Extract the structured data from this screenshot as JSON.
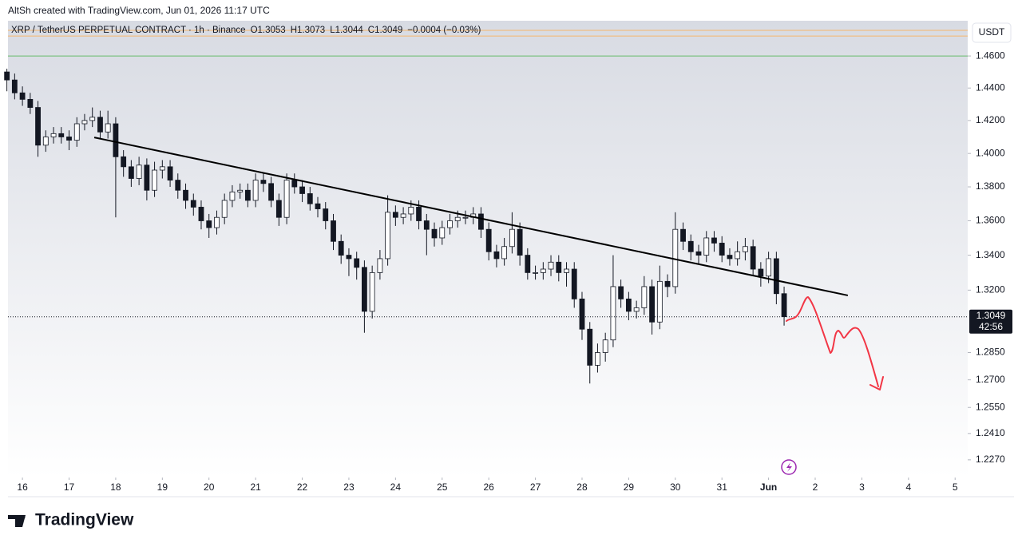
{
  "header": "AltSh created with TradingView.com, Jun 01, 2026 11:17 UTC",
  "brand": "TradingView",
  "chart_data": {
    "type": "candlestick",
    "title": "XRP / TetherUS PERPETUAL CONTRACT · 1h · Binance",
    "ohlc_labels": [
      "O1.3053",
      "H1.3073",
      "L1.3044",
      "C1.3049",
      "−0.0004 (−0.03%)"
    ],
    "currency": "USDT",
    "countdown": "42:56",
    "last_price": {
      "value": 1.3049,
      "label": "1.3049"
    },
    "up_color": "#ffffff",
    "down_color": "#131722",
    "x": [
      15.667,
      15.833,
      16,
      16.167,
      16.333,
      16.5,
      16.667,
      16.833,
      17,
      17.167,
      17.333,
      17.5,
      17.667,
      17.833,
      18,
      18.167,
      18.333,
      18.5,
      18.667,
      18.833,
      19,
      19.167,
      19.333,
      19.5,
      19.667,
      19.833,
      20,
      20.167,
      20.333,
      20.5,
      20.667,
      20.833,
      21,
      21.167,
      21.333,
      21.5,
      21.667,
      21.833,
      22,
      22.167,
      22.333,
      22.5,
      22.667,
      22.833,
      23,
      23.167,
      23.333,
      23.5,
      23.667,
      23.833,
      24,
      24.167,
      24.333,
      24.5,
      24.667,
      24.833,
      25,
      25.167,
      25.333,
      25.5,
      25.667,
      25.833,
      26,
      26.167,
      26.333,
      26.5,
      26.667,
      26.833,
      27,
      27.167,
      27.333,
      27.5,
      27.667,
      27.833,
      28,
      28.167,
      28.333,
      28.5,
      28.667,
      28.833,
      29,
      29.167,
      29.333,
      29.5,
      29.667,
      29.833,
      30,
      30.167,
      30.333,
      30.5,
      30.667,
      30.833,
      31,
      31.167,
      31.333,
      31.5,
      31.667,
      31.833,
      32,
      32.167,
      32.333
    ],
    "open": [
      1.45,
      1.445,
      1.437,
      1.433,
      1.428,
      1.405,
      1.41,
      1.412,
      1.41,
      1.408,
      1.418,
      1.42,
      1.422,
      1.413,
      1.418,
      1.398,
      1.392,
      1.385,
      1.393,
      1.378,
      1.39,
      1.392,
      1.384,
      1.378,
      1.372,
      1.368,
      1.36,
      1.356,
      1.362,
      1.372,
      1.377,
      1.378,
      1.372,
      1.384,
      1.382,
      1.372,
      1.362,
      1.384,
      1.38,
      1.376,
      1.37,
      1.367,
      1.36,
      1.348,
      1.34,
      1.338,
      1.333,
      1.308,
      1.33,
      1.338,
      1.365,
      1.362,
      1.364,
      1.368,
      1.36,
      1.355,
      1.35,
      1.356,
      1.36,
      1.362,
      1.362,
      1.364,
      1.355,
      1.342,
      1.338,
      1.345,
      1.355,
      1.34,
      1.33,
      1.33,
      1.332,
      1.336,
      1.33,
      1.332,
      1.315,
      1.298,
      1.278,
      1.285,
      1.292,
      1.322,
      1.315,
      1.308,
      1.31,
      1.322,
      1.302,
      1.325,
      1.322,
      1.355,
      1.348,
      1.342,
      1.34,
      1.35,
      1.347,
      1.34,
      1.338,
      1.342,
      1.345,
      1.332,
      1.328,
      1.338,
      1.318
    ],
    "high": [
      1.452,
      1.449,
      1.441,
      1.437,
      1.432,
      1.414,
      1.416,
      1.416,
      1.414,
      1.422,
      1.424,
      1.428,
      1.426,
      1.426,
      1.422,
      1.402,
      1.396,
      1.398,
      1.397,
      1.395,
      1.396,
      1.396,
      1.388,
      1.382,
      1.376,
      1.372,
      1.364,
      1.366,
      1.376,
      1.381,
      1.382,
      1.382,
      1.388,
      1.388,
      1.386,
      1.376,
      1.388,
      1.388,
      1.384,
      1.38,
      1.374,
      1.371,
      1.364,
      1.352,
      1.344,
      1.342,
      1.337,
      1.334,
      1.343,
      1.375,
      1.369,
      1.368,
      1.372,
      1.372,
      1.364,
      1.359,
      1.36,
      1.364,
      1.366,
      1.366,
      1.368,
      1.368,
      1.359,
      1.346,
      1.35,
      1.365,
      1.359,
      1.344,
      1.334,
      1.336,
      1.34,
      1.34,
      1.336,
      1.336,
      1.319,
      1.302,
      1.29,
      1.296,
      1.34,
      1.326,
      1.319,
      1.314,
      1.328,
      1.326,
      1.334,
      1.329,
      1.365,
      1.359,
      1.352,
      1.346,
      1.354,
      1.354,
      1.351,
      1.344,
      1.348,
      1.35,
      1.349,
      1.336,
      1.342,
      1.342,
      1.322
    ],
    "low": [
      1.438,
      1.433,
      1.429,
      1.424,
      1.398,
      1.401,
      1.406,
      1.406,
      1.402,
      1.404,
      1.414,
      1.416,
      1.409,
      1.409,
      1.362,
      1.386,
      1.38,
      1.381,
      1.372,
      1.374,
      1.385,
      1.38,
      1.373,
      1.367,
      1.363,
      1.355,
      1.35,
      1.352,
      1.358,
      1.368,
      1.373,
      1.368,
      1.368,
      1.377,
      1.368,
      1.357,
      1.358,
      1.376,
      1.371,
      1.366,
      1.362,
      1.355,
      1.343,
      1.335,
      1.328,
      1.326,
      1.296,
      1.304,
      1.326,
      1.334,
      1.357,
      1.358,
      1.36,
      1.355,
      1.34,
      1.345,
      1.346,
      1.352,
      1.356,
      1.358,
      1.358,
      1.35,
      1.337,
      1.333,
      1.334,
      1.341,
      1.334,
      1.326,
      1.326,
      1.326,
      1.328,
      1.325,
      1.322,
      1.31,
      1.292,
      1.268,
      1.274,
      1.28,
      1.288,
      1.31,
      1.303,
      1.304,
      1.306,
      1.295,
      1.298,
      1.316,
      1.318,
      1.343,
      1.337,
      1.335,
      1.336,
      1.342,
      1.336,
      1.334,
      1.334,
      1.337,
      1.328,
      1.322,
      1.324,
      1.312,
      1.3
    ],
    "close": [
      1.445,
      1.437,
      1.433,
      1.428,
      1.405,
      1.41,
      1.412,
      1.41,
      1.408,
      1.418,
      1.42,
      1.422,
      1.413,
      1.418,
      1.398,
      1.392,
      1.385,
      1.393,
      1.378,
      1.39,
      1.392,
      1.384,
      1.378,
      1.372,
      1.368,
      1.36,
      1.356,
      1.362,
      1.372,
      1.377,
      1.378,
      1.372,
      1.384,
      1.382,
      1.372,
      1.362,
      1.384,
      1.38,
      1.376,
      1.37,
      1.367,
      1.36,
      1.348,
      1.34,
      1.338,
      1.333,
      1.308,
      1.33,
      1.338,
      1.365,
      1.362,
      1.364,
      1.368,
      1.36,
      1.355,
      1.35,
      1.356,
      1.36,
      1.362,
      1.362,
      1.364,
      1.355,
      1.342,
      1.338,
      1.345,
      1.355,
      1.34,
      1.33,
      1.33,
      1.332,
      1.336,
      1.33,
      1.332,
      1.315,
      1.298,
      1.278,
      1.285,
      1.292,
      1.322,
      1.315,
      1.308,
      1.31,
      1.322,
      1.302,
      1.325,
      1.322,
      1.355,
      1.348,
      1.342,
      1.34,
      1.35,
      1.347,
      1.34,
      1.338,
      1.342,
      1.345,
      1.332,
      1.328,
      1.338,
      1.318,
      1.305
    ],
    "xlim": [
      15.69,
      36.27
    ],
    "xticks": [
      16,
      17,
      18,
      19,
      20,
      21,
      22,
      23,
      24,
      25,
      26,
      27,
      28,
      29,
      30,
      31,
      {
        "value": 32,
        "label": "Jun"
      },
      {
        "value": 33,
        "label": "2"
      },
      {
        "value": 34,
        "label": "3"
      },
      {
        "value": 35,
        "label": "4"
      },
      {
        "value": 36,
        "label": "5"
      }
    ],
    "ylim": [
      1.2177,
      1.4823
    ],
    "log_scale": true,
    "yticks": [
      {
        "value": 1.46,
        "label": "1.4600"
      },
      {
        "value": 1.44,
        "label": "1.4400"
      },
      {
        "value": 1.42,
        "label": "1.4200"
      },
      {
        "value": 1.4,
        "label": "1.4000"
      },
      {
        "value": 1.38,
        "label": "1.3800"
      },
      {
        "value": 1.36,
        "label": "1.3600"
      },
      {
        "value": 1.34,
        "label": "1.3400"
      },
      {
        "value": 1.32,
        "label": "1.3200"
      },
      {
        "value": 1.285,
        "label": "1.2850"
      },
      {
        "value": 1.27,
        "label": "1.2700"
      },
      {
        "value": 1.255,
        "label": "1.2550"
      },
      {
        "value": 1.241,
        "label": "1.2410"
      },
      {
        "value": 1.227,
        "label": "1.2270"
      }
    ],
    "hlines": [
      {
        "value": 1.4762,
        "color": "#f5b66d"
      },
      {
        "value": 1.4726,
        "color": "#f5b66d"
      },
      {
        "value": 1.46,
        "color": "#66bb6a"
      }
    ],
    "trendline": {
      "x": [
        17.54,
        33.7
      ],
      "y": [
        1.4097,
        1.317
      ],
      "color": "#000000"
    }
  }
}
